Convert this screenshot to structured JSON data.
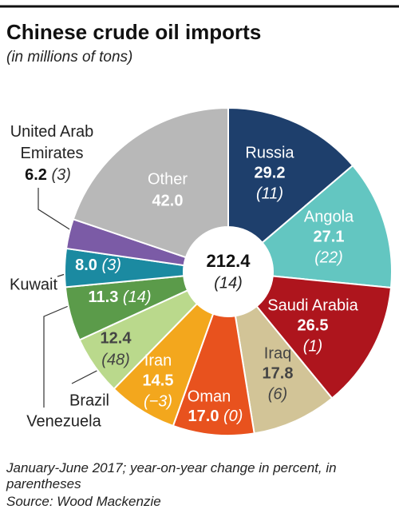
{
  "chart_data": {
    "type": "donut",
    "title": "Chinese crude oil imports",
    "subtitle": "(in millions of tons)",
    "categories": [
      "Russia",
      "Angola",
      "Saudi Arabia",
      "Iraq",
      "Oman",
      "Iran",
      "Brazil",
      "Venezuela",
      "Kuwait",
      "United Arab Emirates",
      "Other"
    ],
    "values": [
      29.2,
      27.1,
      26.5,
      17.8,
      17.0,
      14.5,
      12.4,
      11.3,
      8.0,
      6.2,
      42.0
    ],
    "value_labels": [
      "29.2",
      "27.1",
      "26.5",
      "17.8",
      "17.0",
      "14.5",
      "12.4",
      "11.3",
      "8.0",
      "6.2",
      "42.0"
    ],
    "changes": [
      11,
      22,
      1,
      6,
      0,
      -3,
      48,
      14,
      3,
      3,
      null
    ],
    "change_labels": [
      "(11)",
      "(22)",
      "(1)",
      "(6)",
      "(0)",
      "(−3)",
      "(48)",
      "(14)",
      "(3)",
      "(3)",
      null
    ],
    "colors": [
      "#1e3f6c",
      "#63c6c1",
      "#ae151d",
      "#d2c497",
      "#e8521e",
      "#f3a71d",
      "#bad98c",
      "#5b9b4a",
      "#1b8aa1",
      "#7b5ba6",
      "#b8b8b8"
    ],
    "total": 212.4,
    "total_change": 14,
    "total_change_label": "(14)",
    "note": "January-June 2017; year-on-year change in percent, in parentheses",
    "source": "Source: Wood Mackenzie"
  }
}
